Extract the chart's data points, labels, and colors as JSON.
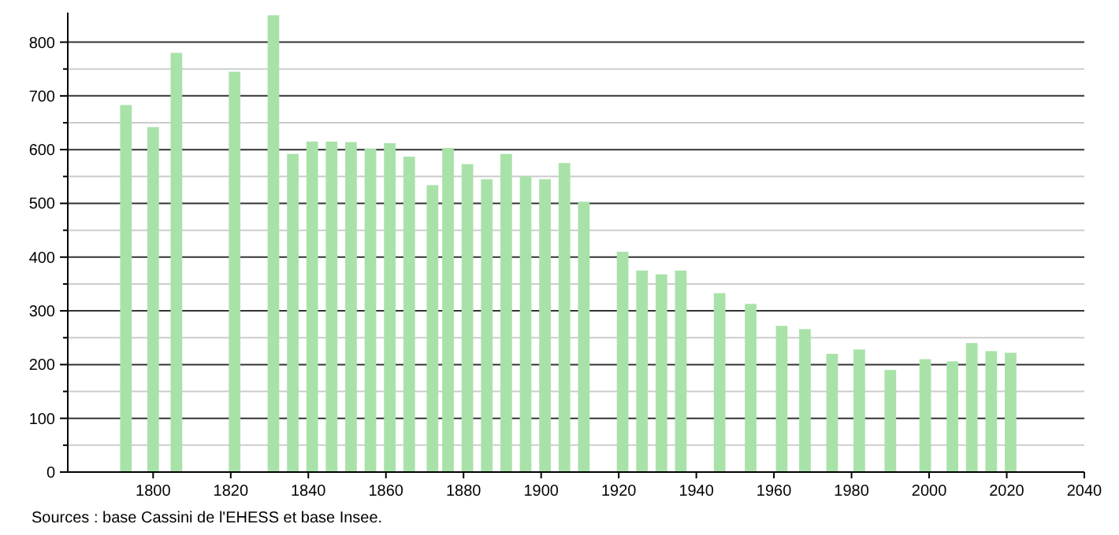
{
  "chart_data": {
    "type": "bar",
    "x": [
      1793,
      1800,
      1806,
      1821,
      1831,
      1836,
      1841,
      1846,
      1851,
      1856,
      1861,
      1866,
      1872,
      1876,
      1881,
      1886,
      1891,
      1896,
      1901,
      1906,
      1911,
      1921,
      1926,
      1931,
      1936,
      1946,
      1954,
      1962,
      1968,
      1975,
      1982,
      1990,
      1999,
      2006,
      2011,
      2016,
      2021
    ],
    "series": [
      {
        "color": "#a9e2a9",
        "values": [
          683,
          642,
          780,
          745,
          850,
          592,
          615,
          615,
          614,
          602,
          612,
          587,
          534,
          603,
          573,
          545,
          592,
          550,
          545,
          575,
          503,
          410,
          375,
          368,
          375,
          333,
          313,
          272,
          266,
          220,
          228,
          190,
          210,
          206,
          240,
          225,
          222
        ]
      }
    ],
    "xlim": [
      1778,
      2040
    ],
    "xticks": [
      1800,
      1820,
      1840,
      1860,
      1880,
      1900,
      1920,
      1940,
      1960,
      1980,
      2000,
      2020,
      2040
    ],
    "ylim": [
      0,
      855
    ],
    "yticks": [
      0,
      {
        "value": 50,
        "label": null
      },
      100,
      {
        "value": 150,
        "label": null
      },
      200,
      {
        "value": 250,
        "label": null
      },
      300,
      {
        "value": 350,
        "label": null
      },
      400,
      {
        "value": 450,
        "label": null
      },
      500,
      {
        "value": 550,
        "label": null
      },
      600,
      {
        "value": 650,
        "label": null
      },
      700,
      {
        "value": 750,
        "label": null
      },
      800
    ],
    "grid": true,
    "annotations": [
      "Sources : base Cassini de l'EHESS et base Insee."
    ]
  }
}
